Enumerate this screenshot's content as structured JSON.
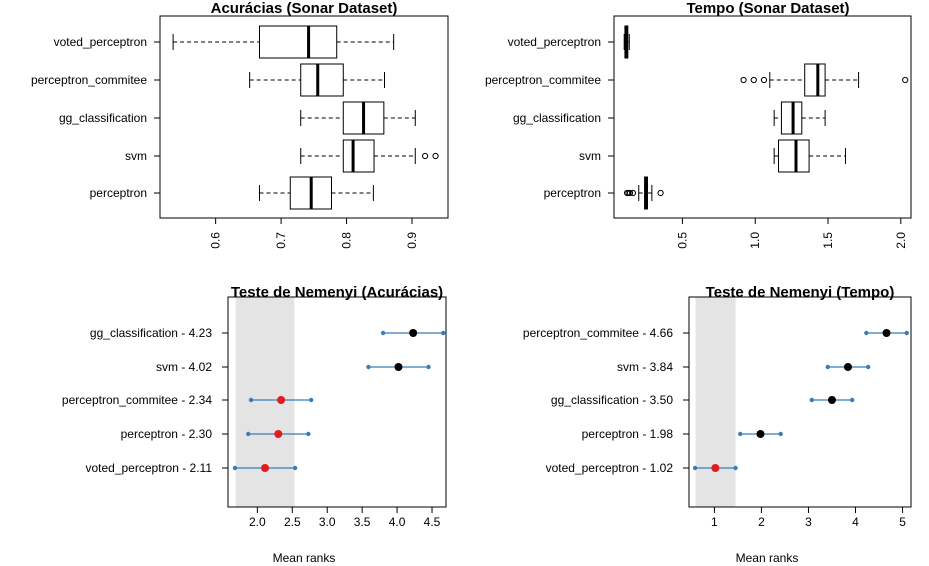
{
  "chart_data": [
    {
      "type": "boxplot",
      "title": "Acurácias (Sonar Dataset)",
      "orientation": "horizontal",
      "xlim": [
        0.515,
        0.955
      ],
      "ticks": [
        "0.6",
        "0.7",
        "0.8",
        "0.9"
      ],
      "tick_values": [
        0.6,
        0.7,
        0.8,
        0.9
      ],
      "series": [
        {
          "name": "voted_perceptron",
          "whisker_low": 0.535,
          "q1": 0.667,
          "median": 0.742,
          "q3": 0.785,
          "whisker_high": 0.872,
          "outliers": []
        },
        {
          "name": "perceptron_commitee",
          "whisker_low": 0.652,
          "q1": 0.73,
          "median": 0.756,
          "q3": 0.795,
          "whisker_high": 0.858,
          "outliers": []
        },
        {
          "name": "gg_classification",
          "whisker_low": 0.73,
          "q1": 0.795,
          "median": 0.826,
          "q3": 0.857,
          "whisker_high": 0.905,
          "outliers": []
        },
        {
          "name": "svm",
          "whisker_low": 0.73,
          "q1": 0.795,
          "median": 0.81,
          "q3": 0.842,
          "whisker_high": 0.905,
          "outliers": [
            0.92,
            0.936
          ]
        },
        {
          "name": "perceptron",
          "whisker_low": 0.667,
          "q1": 0.714,
          "median": 0.746,
          "q3": 0.777,
          "whisker_high": 0.841,
          "outliers": []
        }
      ]
    },
    {
      "type": "boxplot",
      "title": "Tempo (Sonar Dataset)",
      "orientation": "horizontal",
      "xlim": [
        0.03,
        2.07
      ],
      "ticks": [
        "0.5",
        "1.0",
        "1.5",
        "2.0"
      ],
      "tick_values": [
        0.5,
        1.0,
        1.5,
        2.0
      ],
      "series": [
        {
          "name": "voted_perceptron",
          "whisker_low": 0.1,
          "q1": 0.105,
          "median": 0.115,
          "q3": 0.125,
          "whisker_high": 0.135,
          "outliers": []
        },
        {
          "name": "perceptron_commitee",
          "whisker_low": 1.1,
          "q1": 1.34,
          "median": 1.43,
          "q3": 1.48,
          "whisker_high": 1.71,
          "outliers": [
            0.92,
            0.99,
            1.06,
            2.03
          ]
        },
        {
          "name": "gg_classification",
          "whisker_low": 1.13,
          "q1": 1.18,
          "median": 1.26,
          "q3": 1.32,
          "whisker_high": 1.48,
          "outliers": []
        },
        {
          "name": "svm",
          "whisker_low": 1.13,
          "q1": 1.16,
          "median": 1.28,
          "q3": 1.37,
          "whisker_high": 1.62,
          "outliers": []
        },
        {
          "name": "perceptron",
          "whisker_low": 0.2,
          "q1": 0.24,
          "median": 0.25,
          "q3": 0.26,
          "whisker_high": 0.29,
          "outliers": [
            0.12,
            0.13,
            0.14,
            0.16,
            0.35
          ]
        }
      ]
    },
    {
      "type": "scatter",
      "title": "Teste de Nemenyi (Acurácias)",
      "xlabel": "Mean ranks",
      "xlim": [
        1.58,
        4.7
      ],
      "ticks": [
        "2.0",
        "2.5",
        "3.0",
        "3.5",
        "4.0",
        "4.5"
      ],
      "tick_values": [
        2.0,
        2.5,
        3.0,
        3.5,
        4.0,
        4.5
      ],
      "shaded_region": [
        1.69,
        2.53
      ],
      "series": [
        {
          "label": "gg_classification - 4.23",
          "mean": 4.23,
          "low": 3.8,
          "high": 4.66,
          "color": "#000000"
        },
        {
          "label": "svm - 4.02",
          "mean": 4.02,
          "low": 3.59,
          "high": 4.45,
          "color": "#000000"
        },
        {
          "label": "perceptron_commitee - 2.34",
          "mean": 2.34,
          "low": 1.91,
          "high": 2.77,
          "color": "#e41a1c"
        },
        {
          "label": "perceptron - 2.30",
          "mean": 2.3,
          "low": 1.87,
          "high": 2.73,
          "color": "#e41a1c"
        },
        {
          "label": "voted_perceptron - 2.11",
          "mean": 2.11,
          "low": 1.68,
          "high": 2.54,
          "color": "#e41a1c"
        }
      ]
    },
    {
      "type": "scatter",
      "title": "Teste de Nemenyi (Tempo)",
      "xlabel": "Mean ranks",
      "xlim": [
        0.46,
        5.18
      ],
      "ticks": [
        "1",
        "2",
        "3",
        "4",
        "5"
      ],
      "tick_values": [
        1,
        2,
        3,
        4,
        5
      ],
      "shaded_region": [
        0.6,
        1.45
      ],
      "series": [
        {
          "label": "perceptron_commitee - 4.66",
          "mean": 4.66,
          "low": 4.23,
          "high": 5.09,
          "color": "#000000"
        },
        {
          "label": "svm - 3.84",
          "mean": 3.84,
          "low": 3.41,
          "high": 4.27,
          "color": "#000000"
        },
        {
          "label": "gg_classification - 3.50",
          "mean": 3.5,
          "low": 3.07,
          "high": 3.93,
          "color": "#000000"
        },
        {
          "label": "perceptron - 1.98",
          "mean": 1.98,
          "low": 1.55,
          "high": 2.41,
          "color": "#000000"
        },
        {
          "label": "voted_perceptron - 1.02",
          "mean": 1.02,
          "low": 0.59,
          "high": 1.45,
          "color": "#e41a1c"
        }
      ]
    }
  ],
  "style": {
    "interval_color": "#377eb8",
    "shade_color": "#e4e4e4"
  }
}
